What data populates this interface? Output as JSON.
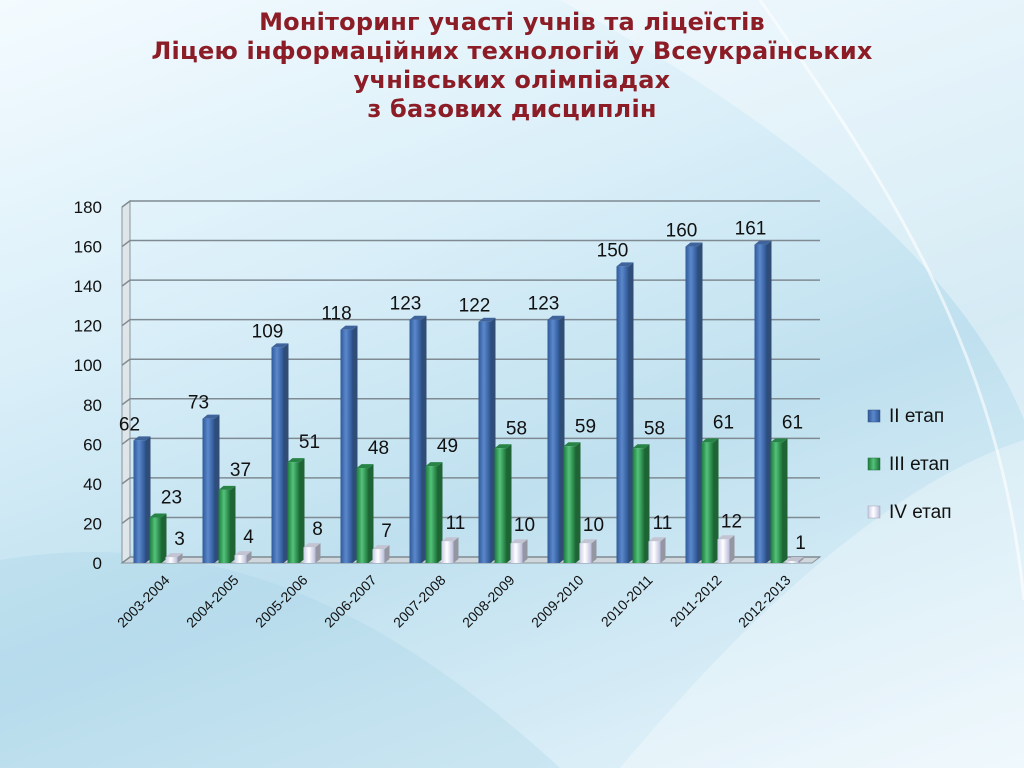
{
  "title_lines": [
    "Моніторинг участі учнів та ліцеїстів",
    "Ліцею інформаційних технологій у Всеукраїнських",
    "учнівських олімпіадах",
    "з базових дисциплін"
  ],
  "chart_data": {
    "type": "bar",
    "title": "Моніторинг участі учнів та ліцеїстів Ліцею інформаційних технологій у Всеукраїнських учнівських олімпіадах з базових дисциплін",
    "categories": [
      "2003-2004",
      "2004-2005",
      "2005-2006",
      "2006-2007",
      "2007-2008",
      "2008-2009",
      "2009-2010",
      "2010-2011",
      "2011-2012",
      "2012-2013"
    ],
    "series": [
      {
        "name": "II етап",
        "values": [
          62,
          73,
          109,
          118,
          123,
          122,
          123,
          150,
          160,
          161
        ],
        "color": "#4a76b8"
      },
      {
        "name": "III етап",
        "values": [
          23,
          37,
          51,
          48,
          49,
          58,
          59,
          58,
          61,
          61
        ],
        "color": "#2e9a52"
      },
      {
        "name": "IV етап",
        "values": [
          3,
          4,
          8,
          7,
          11,
          10,
          10,
          11,
          12,
          1
        ],
        "color": "#e4e6f7"
      }
    ],
    "ylim": [
      0,
      180
    ],
    "yticks": [
      0,
      20,
      40,
      60,
      80,
      100,
      120,
      140,
      160,
      180
    ],
    "grid": true,
    "legend": "right",
    "xlabel": "",
    "ylabel": ""
  }
}
